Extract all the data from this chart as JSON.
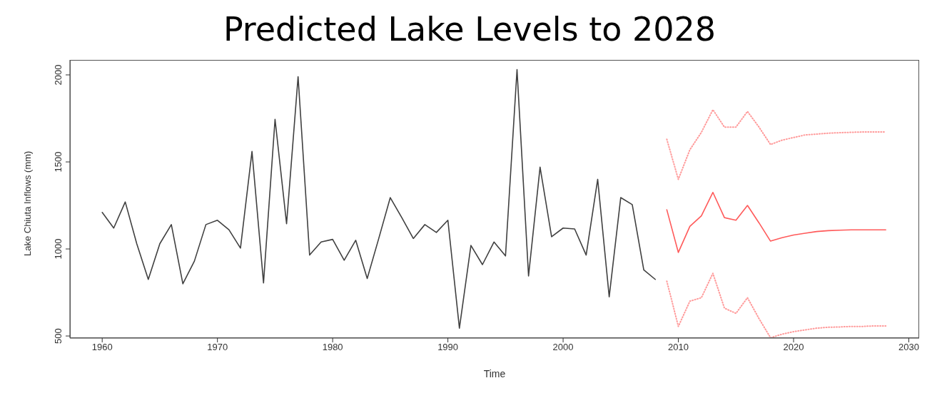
{
  "chart_data": {
    "type": "line",
    "title": "Predicted Lake Levels to 2028",
    "xlabel": "Time",
    "ylabel": "Lake Chiuta Inflows (mm)",
    "xlim": [
      1957.2,
      2030.9
    ],
    "xticks": [
      1960,
      1970,
      1980,
      1990,
      2000,
      2010,
      2020,
      2030
    ],
    "ylim": [
      488,
      2086
    ],
    "yticks": [
      500,
      1000,
      1500,
      2000
    ],
    "marker": "none",
    "series": [
      {
        "color": "#404040",
        "line_style": "solid",
        "x": [
          1960,
          1961,
          1962,
          1963,
          1964,
          1965,
          1966,
          1967,
          1968,
          1969,
          1970,
          1971,
          1972,
          1973,
          1974,
          1975,
          1976,
          1977,
          1978,
          1979,
          1980,
          1981,
          1982,
          1983,
          1984,
          1985,
          1986,
          1987,
          1988,
          1989,
          1990,
          1991,
          1992,
          1993,
          1994,
          1995,
          1996,
          1997,
          1998,
          1999,
          2000,
          2001,
          2002,
          2003,
          2004,
          2005,
          2006,
          2007,
          2008
        ],
        "values": [
          1210,
          1120,
          1270,
          1030,
          825,
          1030,
          1140,
          800,
          930,
          1140,
          1165,
          1110,
          1005,
          1560,
          805,
          1745,
          1145,
          1990,
          965,
          1040,
          1055,
          935,
          1050,
          830,
          1060,
          1295,
          1180,
          1060,
          1140,
          1095,
          1165,
          545,
          1020,
          910,
          1040,
          960,
          2030,
          845,
          1470,
          1070,
          1120,
          1115,
          965,
          1400,
          725,
          1295,
          1255,
          880,
          825
        ]
      },
      {
        "color": "#ff9a9a",
        "line_style": "dotted",
        "x": [
          2009,
          2010,
          2011,
          2012,
          2013,
          2014,
          2015,
          2016,
          2017,
          2018,
          2019,
          2020,
          2021,
          2022,
          2023,
          2024,
          2025,
          2026,
          2027,
          2028
        ],
        "values": [
          1630,
          1400,
          1570,
          1670,
          1800,
          1700,
          1700,
          1790,
          1700,
          1600,
          1625,
          1640,
          1655,
          1660,
          1665,
          1668,
          1670,
          1672,
          1672,
          1672
        ]
      },
      {
        "color": "#ff5a5a",
        "line_style": "solid",
        "x": [
          2009,
          2010,
          2011,
          2012,
          2013,
          2014,
          2015,
          2016,
          2017,
          2018,
          2019,
          2020,
          2021,
          2022,
          2023,
          2024,
          2025,
          2026,
          2027,
          2028
        ],
        "values": [
          1225,
          980,
          1130,
          1190,
          1325,
          1180,
          1165,
          1250,
          1150,
          1045,
          1065,
          1080,
          1090,
          1100,
          1105,
          1108,
          1110,
          1110,
          1110,
          1110
        ]
      },
      {
        "color": "#ff9a9a",
        "line_style": "dotted",
        "x": [
          2009,
          2010,
          2011,
          2012,
          2013,
          2014,
          2015,
          2016,
          2017,
          2018,
          2019,
          2020,
          2021,
          2022,
          2023,
          2024,
          2025,
          2026,
          2027,
          2028
        ],
        "values": [
          815,
          555,
          700,
          720,
          860,
          660,
          630,
          720,
          600,
          490,
          510,
          525,
          535,
          545,
          550,
          552,
          555,
          555,
          558,
          558
        ]
      }
    ]
  }
}
